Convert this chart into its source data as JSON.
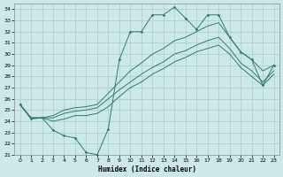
{
  "xlabel": "Humidex (Indice chaleur)",
  "background_color": "#cce8e8",
  "grid_color": "#aacccc",
  "line_color": "#2e7d6e",
  "xlim": [
    -0.5,
    23.5
  ],
  "ylim": [
    21,
    34.5
  ],
  "yticks": [
    21,
    22,
    23,
    24,
    25,
    26,
    27,
    28,
    29,
    30,
    31,
    32,
    33,
    34
  ],
  "xticks": [
    0,
    1,
    2,
    3,
    4,
    5,
    6,
    7,
    8,
    9,
    10,
    11,
    12,
    13,
    14,
    15,
    16,
    17,
    18,
    19,
    20,
    21,
    22,
    23
  ],
  "line_zigzag": {
    "x": [
      0,
      1,
      2,
      3,
      4,
      5,
      6,
      7,
      8,
      9,
      10,
      11,
      12,
      13,
      14,
      15,
      16,
      17,
      18,
      19,
      20,
      21,
      22,
      23
    ],
    "y": [
      25.5,
      24.2,
      24.3,
      23.2,
      22.7,
      22.5,
      21.2,
      21.0,
      23.3,
      29.5,
      32.0,
      32.0,
      33.5,
      33.5,
      34.2,
      33.2,
      32.2,
      33.5,
      33.5,
      31.5,
      30.2,
      29.5,
      27.2,
      29.0
    ]
  },
  "line_upper": {
    "x": [
      0,
      1,
      2,
      3,
      4,
      5,
      6,
      7,
      8,
      9,
      10,
      11,
      12,
      13,
      14,
      15,
      16,
      17,
      18,
      19,
      20,
      21,
      22,
      23
    ],
    "y": [
      25.5,
      24.3,
      24.3,
      24.5,
      25.0,
      25.2,
      25.3,
      25.5,
      26.5,
      27.5,
      28.5,
      29.2,
      30.0,
      30.5,
      31.2,
      31.5,
      32.0,
      32.5,
      32.8,
      31.5,
      30.2,
      29.5,
      28.5,
      29.0
    ]
  },
  "line_mid": {
    "x": [
      0,
      1,
      2,
      3,
      4,
      5,
      6,
      7,
      8,
      9,
      10,
      11,
      12,
      13,
      14,
      15,
      16,
      17,
      18,
      19,
      20,
      21,
      22,
      23
    ],
    "y": [
      25.5,
      24.3,
      24.3,
      24.3,
      24.7,
      24.9,
      25.0,
      25.2,
      26.0,
      26.8,
      27.5,
      28.2,
      28.8,
      29.3,
      30.0,
      30.3,
      30.8,
      31.2,
      31.5,
      30.5,
      29.2,
      28.5,
      27.5,
      28.5
    ]
  },
  "line_lower": {
    "x": [
      0,
      1,
      2,
      3,
      4,
      5,
      6,
      7,
      8,
      9,
      10,
      11,
      12,
      13,
      14,
      15,
      16,
      17,
      18,
      19,
      20,
      21,
      22,
      23
    ],
    "y": [
      25.5,
      24.3,
      24.3,
      24.0,
      24.2,
      24.5,
      24.5,
      24.7,
      25.3,
      26.2,
      27.0,
      27.5,
      28.2,
      28.7,
      29.3,
      29.7,
      30.2,
      30.5,
      30.8,
      30.0,
      28.8,
      28.0,
      27.2,
      28.2
    ]
  }
}
